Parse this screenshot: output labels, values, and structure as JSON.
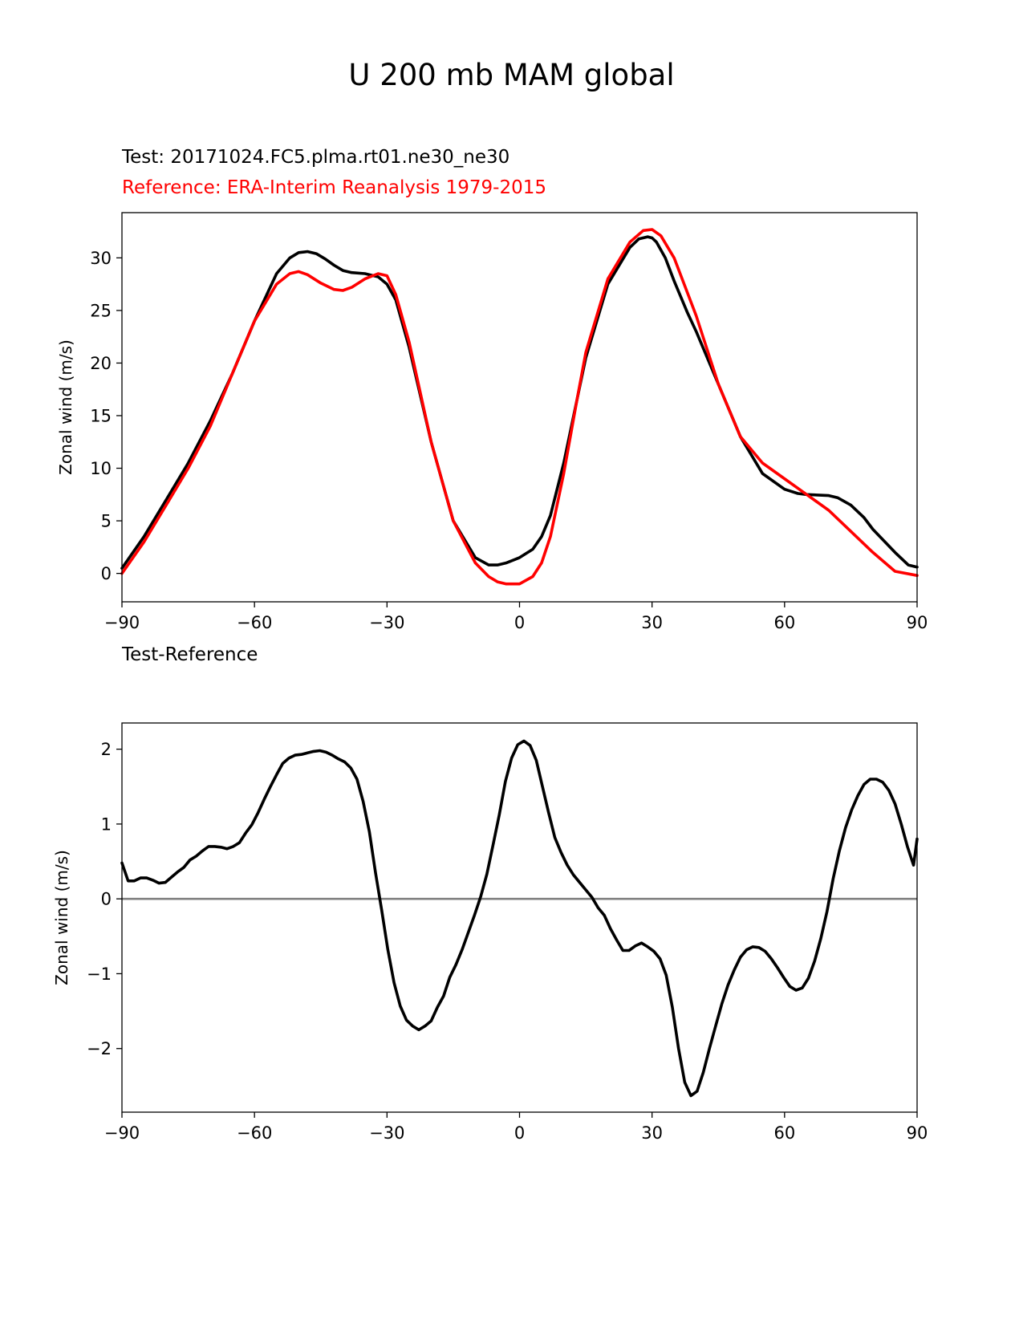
{
  "figure": {
    "title": "U 200 mb MAM global",
    "test_title": "Test: 20171024.FC5.plma.rt01.ne30_ne30",
    "reference_title": "Reference: ERA-Interim Reanalysis 1979-2015",
    "diff_title": "Test-Reference"
  },
  "colors": {
    "test": "#000000",
    "reference": "#ff0000",
    "zero_line": "#808080"
  },
  "chart_data": [
    {
      "type": "line",
      "title": "Test: 20171024.FC5.plma.rt01.ne30_ne30",
      "xlabel": "",
      "ylabel": "Zonal wind (m/s)",
      "xlim": [
        -90,
        90
      ],
      "ylim": [
        -2.7,
        34.3
      ],
      "xticks": [
        -90,
        -60,
        -30,
        0,
        30,
        60,
        90
      ],
      "yticks": [
        0,
        5,
        10,
        15,
        20,
        25,
        30
      ],
      "xtick_labels": [
        "−90",
        "−60",
        "−30",
        "0",
        "30",
        "60",
        "90"
      ],
      "ytick_labels": [
        "0",
        "5",
        "10",
        "15",
        "20",
        "25",
        "30"
      ],
      "series": [
        {
          "name": "Test: 20171024.FC5.plma.rt01.ne30_ne30",
          "color": "#000000",
          "x": [
            -90,
            -85,
            -80,
            -75,
            -70,
            -65,
            -60,
            -55,
            -52,
            -50,
            -48,
            -46,
            -44,
            -42,
            -40,
            -38,
            -35,
            -32,
            -30,
            -28,
            -25,
            -20,
            -15,
            -10,
            -7,
            -5,
            -3,
            0,
            3,
            5,
            7,
            10,
            13,
            15,
            20,
            25,
            27,
            29,
            30,
            31,
            33,
            35,
            38,
            40,
            45,
            50,
            55,
            60,
            63,
            65,
            70,
            72,
            75,
            78,
            80,
            85,
            88,
            90
          ],
          "y": [
            0.5,
            3.5,
            7.0,
            10.5,
            14.5,
            19.0,
            24.0,
            28.5,
            30.0,
            30.5,
            30.6,
            30.4,
            29.9,
            29.3,
            28.8,
            28.6,
            28.5,
            28.2,
            27.5,
            26.0,
            21.5,
            12.5,
            5.0,
            1.5,
            0.8,
            0.8,
            1.0,
            1.5,
            2.3,
            3.5,
            5.5,
            10.5,
            16.5,
            20.5,
            27.5,
            31.0,
            31.8,
            32.0,
            31.9,
            31.5,
            30.0,
            27.8,
            24.8,
            23.0,
            18.0,
            13.0,
            9.5,
            8.0,
            7.6,
            7.5,
            7.4,
            7.2,
            6.5,
            5.3,
            4.2,
            2.0,
            0.8,
            0.6
          ]
        },
        {
          "name": "Reference: ERA-Interim Reanalysis 1979-2015",
          "color": "#ff0000",
          "x": [
            -90,
            -85,
            -80,
            -75,
            -70,
            -65,
            -60,
            -55,
            -52,
            -50,
            -48,
            -45,
            -42,
            -40,
            -38,
            -35,
            -32,
            -30,
            -28,
            -25,
            -20,
            -15,
            -10,
            -7,
            -5,
            -3,
            0,
            3,
            5,
            7,
            10,
            13,
            15,
            20,
            25,
            28,
            30,
            32,
            35,
            40,
            45,
            50,
            55,
            60,
            65,
            70,
            75,
            80,
            85,
            90
          ],
          "y": [
            0.0,
            3.0,
            6.5,
            10.0,
            14.0,
            19.0,
            24.0,
            27.5,
            28.5,
            28.7,
            28.4,
            27.6,
            27.0,
            26.9,
            27.2,
            28.0,
            28.5,
            28.3,
            26.5,
            22.0,
            12.5,
            5.0,
            1.0,
            -0.3,
            -0.8,
            -1.0,
            -1.0,
            -0.3,
            1.0,
            3.5,
            9.5,
            16.5,
            21.0,
            28.0,
            31.5,
            32.6,
            32.7,
            32.1,
            30.0,
            24.5,
            18.0,
            13.0,
            10.5,
            9.0,
            7.5,
            6.0,
            4.0,
            2.0,
            0.2,
            -0.2
          ]
        }
      ]
    },
    {
      "type": "line",
      "title": "Test-Reference",
      "xlabel": "",
      "ylabel": "Zonal wind (m/s)",
      "xlim": [
        -90,
        90
      ],
      "ylim": [
        -2.85,
        2.35
      ],
      "xticks": [
        -90,
        -60,
        -30,
        0,
        30,
        60,
        90
      ],
      "yticks": [
        -2,
        -1,
        0,
        1,
        2
      ],
      "xtick_labels": [
        "−90",
        "−60",
        "−30",
        "0",
        "30",
        "60",
        "90"
      ],
      "ytick_labels": [
        "−2",
        "−1",
        "0",
        "1",
        "2"
      ],
      "zero_line": 0,
      "series": [
        {
          "name": "Test-Reference",
          "color": "#000000",
          "x": [
            -90,
            -88.6,
            -87.2,
            -85.8,
            -84.4,
            -83,
            -81.6,
            -80.2,
            -78.8,
            -77.4,
            -76,
            -74.6,
            -73.2,
            -71.8,
            -70.4,
            -69,
            -67.6,
            -66.2,
            -64.8,
            -63.4,
            -62,
            -60.6,
            -59.2,
            -57.8,
            -56.4,
            -55,
            -53.6,
            -52.2,
            -50.8,
            -49.4,
            -48,
            -46.6,
            -45.2,
            -43.8,
            -42.4,
            -41,
            -39.6,
            -38.2,
            -36.8,
            -35.4,
            -34,
            -32.6,
            -31.2,
            -29.8,
            -28.4,
            -27,
            -25.6,
            -24.2,
            -22.8,
            -21.4,
            -20,
            -18.6,
            -17.2,
            -15.8,
            -14.4,
            -13,
            -11.6,
            -10.2,
            -8.8,
            -7.4,
            -6,
            -4.6,
            -3.2,
            -1.8,
            -0.4,
            1.0,
            2.4,
            3.8,
            5.2,
            6.6,
            8,
            9.4,
            10.8,
            12.2,
            13.6,
            15,
            16.4,
            17.8,
            19.2,
            20.6,
            22,
            23.4,
            24.8,
            26.2,
            27.6,
            29,
            30.4,
            31.8,
            33.2,
            34.6,
            36,
            37.4,
            38.8,
            40.2,
            41.6,
            43,
            44.4,
            45.8,
            47.2,
            48.6,
            50,
            51.4,
            52.8,
            54.2,
            55.6,
            57,
            58.4,
            59.8,
            61.2,
            62.6,
            64,
            65.4,
            66.8,
            68.2,
            69.6,
            71,
            72.4,
            73.8,
            75.2,
            76.6,
            78,
            79.4,
            80.8,
            82.2,
            83.6,
            85,
            86.4,
            87.8,
            89.2,
            90
          ],
          "y": [
            0.48,
            0.24,
            0.24,
            0.28,
            0.28,
            0.25,
            0.21,
            0.22,
            0.29,
            0.36,
            0.42,
            0.52,
            0.57,
            0.64,
            0.7,
            0.7,
            0.69,
            0.67,
            0.7,
            0.75,
            0.88,
            0.99,
            1.15,
            1.33,
            1.5,
            1.66,
            1.81,
            1.88,
            1.92,
            1.93,
            1.95,
            1.97,
            1.98,
            1.96,
            1.92,
            1.87,
            1.83,
            1.75,
            1.6,
            1.3,
            0.9,
            0.35,
            -0.15,
            -0.68,
            -1.12,
            -1.43,
            -1.62,
            -1.7,
            -1.75,
            -1.7,
            -1.63,
            -1.45,
            -1.3,
            -1.05,
            -0.88,
            -0.68,
            -0.45,
            -0.22,
            0.03,
            0.33,
            0.72,
            1.12,
            1.57,
            1.88,
            2.06,
            2.11,
            2.05,
            1.85,
            1.5,
            1.15,
            0.82,
            0.62,
            0.45,
            0.32,
            0.22,
            0.12,
            0.02,
            -0.12,
            -0.22,
            -0.4,
            -0.55,
            -0.69,
            -0.69,
            -0.63,
            -0.59,
            -0.64,
            -0.7,
            -0.8,
            -1.02,
            -1.45,
            -2.0,
            -2.45,
            -2.63,
            -2.57,
            -2.32,
            -2.0,
            -1.7,
            -1.4,
            -1.15,
            -0.95,
            -0.78,
            -0.68,
            -0.64,
            -0.65,
            -0.7,
            -0.8,
            -0.92,
            -1.05,
            -1.17,
            -1.22,
            -1.19,
            -1.06,
            -0.83,
            -0.53,
            -0.17,
            0.27,
            0.64,
            0.95,
            1.19,
            1.38,
            1.53,
            1.6,
            1.6,
            1.56,
            1.45,
            1.27,
            1.0,
            0.7,
            0.45,
            0.8
          ]
        }
      ]
    }
  ]
}
